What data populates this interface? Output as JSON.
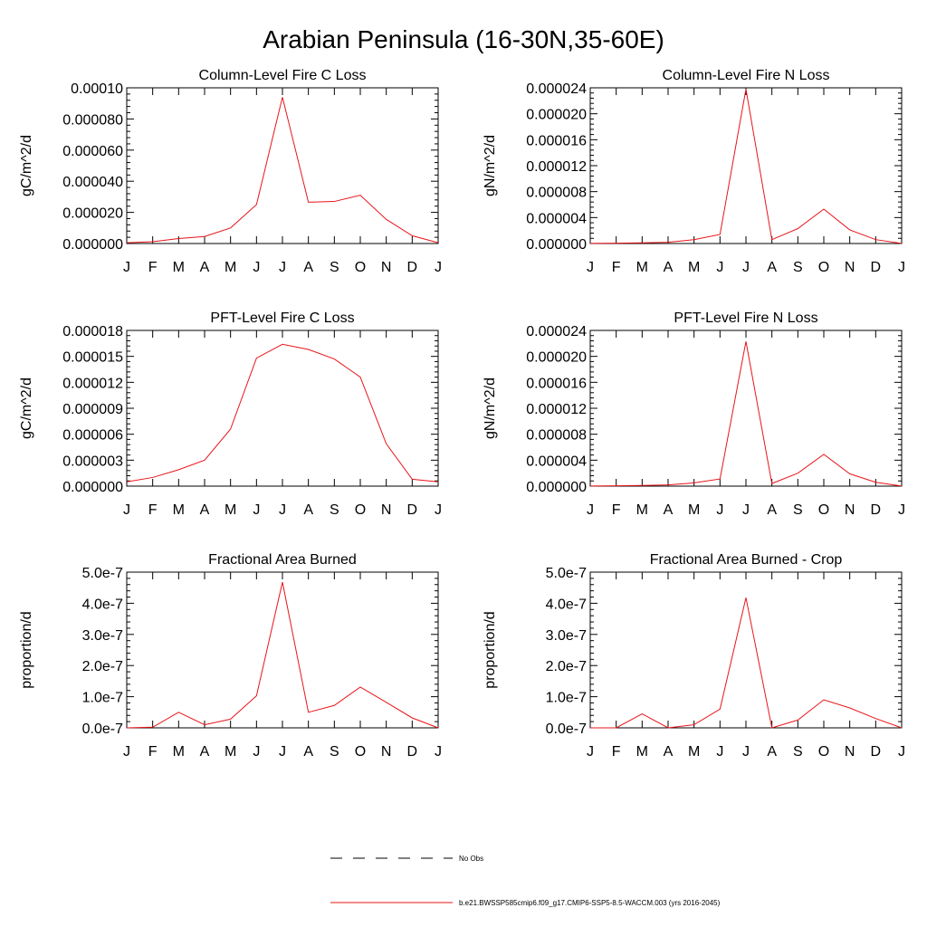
{
  "figure_title": "Arabian Peninsula (16-30N,35-60E)",
  "colors": {
    "model_line": "#e8141a",
    "obs_line": "#000000",
    "axis": "#000000"
  },
  "legend": [
    {
      "label": "No Obs",
      "style": "dashed",
      "color": "#000000"
    },
    {
      "label": "b.e21.BWSSP585cmip6.f09_g17.CMIP6-SSP5-8.5-WACCM.003 (yrs 2016-2045)",
      "style": "solid",
      "color": "#e8141a"
    }
  ],
  "chart_data": [
    {
      "type": "line",
      "title": "Column-Level Fire C Loss",
      "xlabel": "",
      "ylabel": "gC/m^2/d",
      "categories": [
        "J",
        "F",
        "M",
        "A",
        "M",
        "J",
        "J",
        "A",
        "S",
        "O",
        "N",
        "D",
        "J"
      ],
      "ylim": [
        0,
        0.0001
      ],
      "yticks": [
        0,
        2e-05,
        4e-05,
        6e-05,
        8e-05,
        0.0001
      ],
      "ytick_labels": [
        "0.000000",
        "0.000020",
        "0.000040",
        "0.000060",
        "0.000080",
        "0.00010"
      ],
      "series": [
        {
          "values": [
            5e-07,
            1.2e-06,
            3.2e-06,
            4.5e-06,
            1e-05,
            2.5e-05,
            9.4e-05,
            2.65e-05,
            2.7e-05,
            3.1e-05,
            1.55e-05,
            5e-06,
            5e-07
          ]
        }
      ]
    },
    {
      "type": "line",
      "title": "Column-Level Fire N Loss",
      "xlabel": "",
      "ylabel": "gN/m^2/d",
      "categories": [
        "J",
        "F",
        "M",
        "A",
        "M",
        "J",
        "J",
        "A",
        "S",
        "O",
        "N",
        "D",
        "J"
      ],
      "ylim": [
        0,
        2.4e-05
      ],
      "yticks": [
        0,
        4e-06,
        8e-06,
        1.2e-05,
        1.6e-05,
        2e-05,
        2.4e-05
      ],
      "ytick_labels": [
        "0.000000",
        "0.000004",
        "0.000008",
        "0.000012",
        "0.000016",
        "0.000020",
        "0.000024"
      ],
      "series": [
        {
          "values": [
            2e-08,
            5e-08,
            1e-07,
            2e-07,
            6e-07,
            1.4e-06,
            2.38e-05,
            6e-07,
            2.3e-06,
            5.3e-06,
            2.1e-06,
            6e-07,
            2e-08
          ]
        }
      ]
    },
    {
      "type": "line",
      "title": "PFT-Level Fire C Loss",
      "xlabel": "",
      "ylabel": "gC/m^2/d",
      "categories": [
        "J",
        "F",
        "M",
        "A",
        "M",
        "J",
        "J",
        "A",
        "S",
        "O",
        "N",
        "D",
        "J"
      ],
      "ylim": [
        0,
        1.8e-05
      ],
      "yticks": [
        0,
        3e-06,
        6e-06,
        9e-06,
        1.2e-05,
        1.5e-05,
        1.8e-05
      ],
      "ytick_labels": [
        "0.000000",
        "0.000003",
        "0.000006",
        "0.000009",
        "0.000012",
        "0.000015",
        "0.000018"
      ],
      "series": [
        {
          "values": [
            5e-07,
            1e-06,
            1.9e-06,
            3e-06,
            6.6e-06,
            1.48e-05,
            1.64e-05,
            1.58e-05,
            1.47e-05,
            1.26e-05,
            4.9e-06,
            8e-07,
            5e-07
          ]
        }
      ]
    },
    {
      "type": "line",
      "title": "PFT-Level Fire N Loss",
      "xlabel": "",
      "ylabel": "gN/m^2/d",
      "categories": [
        "J",
        "F",
        "M",
        "A",
        "M",
        "J",
        "J",
        "A",
        "S",
        "O",
        "N",
        "D",
        "J"
      ],
      "ylim": [
        0,
        2.4e-05
      ],
      "yticks": [
        0,
        4e-06,
        8e-06,
        1.2e-05,
        1.6e-05,
        2e-05,
        2.4e-05
      ],
      "ytick_labels": [
        "0.000000",
        "0.000004",
        "0.000008",
        "0.000012",
        "0.000016",
        "0.000020",
        "0.000024"
      ],
      "series": [
        {
          "values": [
            2e-08,
            5e-08,
            1e-07,
            2e-07,
            5e-07,
            1.1e-06,
            2.23e-05,
            4e-07,
            2e-06,
            4.9e-06,
            1.9e-06,
            6e-07,
            2e-08
          ]
        }
      ]
    },
    {
      "type": "line",
      "title": "Fractional Area Burned",
      "xlabel": "",
      "ylabel": "proportion/d",
      "categories": [
        "J",
        "F",
        "M",
        "A",
        "M",
        "J",
        "J",
        "A",
        "S",
        "O",
        "N",
        "D",
        "J"
      ],
      "ylim": [
        0,
        5e-07
      ],
      "yticks": [
        0,
        1e-07,
        2e-07,
        3e-07,
        4e-07,
        5e-07
      ],
      "ytick_labels": [
        "0.0e-7",
        "1.0e-7",
        "2.0e-7",
        "3.0e-7",
        "4.0e-7",
        "5.0e-7"
      ],
      "series": [
        {
          "values": [
            0.0,
            2e-09,
            5e-08,
            1e-08,
            2.8e-08,
            1.03e-07,
            4.68e-07,
            5e-08,
            7.2e-08,
            1.31e-07,
            8.2e-08,
            3.2e-08,
            0.0
          ]
        }
      ]
    },
    {
      "type": "line",
      "title": "Fractional Area Burned - Crop",
      "xlabel": "",
      "ylabel": "proportion/d",
      "categories": [
        "J",
        "F",
        "M",
        "A",
        "M",
        "J",
        "J",
        "A",
        "S",
        "O",
        "N",
        "D",
        "J"
      ],
      "ylim": [
        0,
        5e-07
      ],
      "yticks": [
        0,
        1e-07,
        2e-07,
        3e-07,
        4e-07,
        5e-07
      ],
      "ytick_labels": [
        "0.0e-7",
        "1.0e-7",
        "2.0e-7",
        "3.0e-7",
        "4.0e-7",
        "5.0e-7"
      ],
      "series": [
        {
          "values": [
            0.0,
            0.0,
            4.5e-08,
            0.0,
            1e-08,
            6e-08,
            4.18e-07,
            0.0,
            2.5e-08,
            9e-08,
            6.4e-08,
            3e-08,
            0.0
          ]
        }
      ]
    }
  ]
}
